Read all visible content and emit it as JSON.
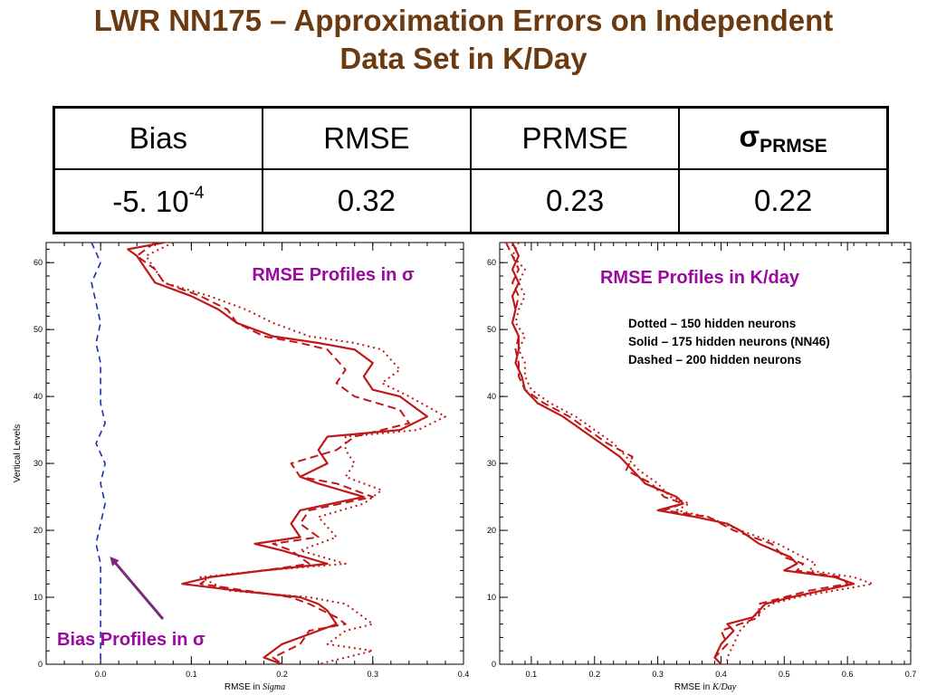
{
  "title": {
    "line1": "LWR NN175 – Approximation Errors on Independent",
    "line2": "Data Set in K/Day"
  },
  "table": {
    "headers": [
      "Bias",
      "RMSE",
      "PRMSE",
      "σ",
      "PRMSE"
    ],
    "values": {
      "bias_mantissa": "-5. 10",
      "bias_exponent": "-4",
      "rmse": "0.32",
      "prmse": "0.23",
      "sigma_prmse": "0.22"
    }
  },
  "annotations": {
    "left_title": "RMSE Profiles in σ",
    "right_title": "RMSE Profiles in K/day",
    "bias_label": "Bias Profiles in σ",
    "legend": [
      "Dotted – 150 hidden neurons",
      "Solid – 175 hidden neurons (NN46)",
      "Dashed – 200 hidden neurons"
    ]
  },
  "colors": {
    "title": "#6b3a10",
    "annotation": "#9b0aa0",
    "profile": "#c01818",
    "bias": "#1a2fb0",
    "arrow": "#7a2a7a"
  },
  "chart_data": [
    {
      "type": "line",
      "xlabel_prefix": "RMSE in",
      "xlabel_unit": "Sigma",
      "ylabel": "Vertical Levels",
      "xlim": [
        -0.06,
        0.4
      ],
      "ylim": [
        0,
        63
      ],
      "xticks": [
        "0.0",
        "0.1",
        "0.2",
        "0.3",
        "0.4"
      ],
      "xtick_values": [
        0.0,
        0.1,
        0.2,
        0.3,
        0.4
      ],
      "yticks": [
        "0",
        "10",
        "20",
        "30",
        "40",
        "50",
        "60"
      ],
      "ytick_values": [
        0,
        10,
        20,
        30,
        40,
        50,
        60
      ],
      "series": [
        {
          "style": "solid",
          "points": [
            [
              0.07,
              63
            ],
            [
              0.03,
              62
            ],
            [
              0.04,
              61
            ],
            [
              0.05,
              59
            ],
            [
              0.06,
              57
            ],
            [
              0.1,
              55
            ],
            [
              0.13,
              53
            ],
            [
              0.15,
              51
            ],
            [
              0.19,
              49
            ],
            [
              0.24,
              48
            ],
            [
              0.28,
              47
            ],
            [
              0.3,
              45
            ],
            [
              0.29,
              43
            ],
            [
              0.3,
              41
            ],
            [
              0.33,
              40
            ],
            [
              0.36,
              37
            ],
            [
              0.33,
              35
            ],
            [
              0.25,
              34
            ],
            [
              0.24,
              32
            ],
            [
              0.25,
              30
            ],
            [
              0.22,
              28
            ],
            [
              0.24,
              27
            ],
            [
              0.29,
              25
            ],
            [
              0.22,
              23
            ],
            [
              0.21,
              21
            ],
            [
              0.22,
              19
            ],
            [
              0.17,
              18
            ],
            [
              0.2,
              17
            ],
            [
              0.25,
              15
            ],
            [
              0.18,
              14
            ],
            [
              0.12,
              13
            ],
            [
              0.09,
              12
            ],
            [
              0.15,
              11
            ],
            [
              0.22,
              10
            ],
            [
              0.24,
              9
            ],
            [
              0.25,
              8
            ],
            [
              0.26,
              6
            ],
            [
              0.24,
              5
            ],
            [
              0.2,
              3
            ],
            [
              0.18,
              1
            ],
            [
              0.2,
              0
            ]
          ]
        },
        {
          "style": "dashed",
          "points": [
            [
              0.06,
              63
            ],
            [
              0.04,
              61
            ],
            [
              0.06,
              59
            ],
            [
              0.07,
              57
            ],
            [
              0.11,
              55
            ],
            [
              0.14,
              53
            ],
            [
              0.15,
              51
            ],
            [
              0.18,
              49
            ],
            [
              0.22,
              48
            ],
            [
              0.25,
              47
            ],
            [
              0.27,
              44
            ],
            [
              0.26,
              42
            ],
            [
              0.28,
              40
            ],
            [
              0.33,
              38
            ],
            [
              0.34,
              36
            ],
            [
              0.28,
              34
            ],
            [
              0.26,
              32
            ],
            [
              0.21,
              30
            ],
            [
              0.22,
              28
            ],
            [
              0.26,
              27
            ],
            [
              0.3,
              25
            ],
            [
              0.23,
              23
            ],
            [
              0.22,
              21
            ],
            [
              0.24,
              19
            ],
            [
              0.19,
              18
            ],
            [
              0.21,
              17
            ],
            [
              0.23,
              15
            ],
            [
              0.18,
              14
            ],
            [
              0.12,
              13
            ],
            [
              0.11,
              12
            ],
            [
              0.16,
              11
            ],
            [
              0.21,
              10
            ],
            [
              0.23,
              9
            ],
            [
              0.26,
              7
            ],
            [
              0.27,
              6
            ],
            [
              0.23,
              5
            ],
            [
              0.22,
              3
            ],
            [
              0.19,
              1
            ],
            [
              0.2,
              0
            ]
          ]
        },
        {
          "style": "dotted",
          "points": [
            [
              0.08,
              63
            ],
            [
              0.05,
              61
            ],
            [
              0.06,
              59
            ],
            [
              0.07,
              57
            ],
            [
              0.12,
              55
            ],
            [
              0.16,
              53
            ],
            [
              0.19,
              51
            ],
            [
              0.23,
              49
            ],
            [
              0.28,
              48
            ],
            [
              0.31,
              47
            ],
            [
              0.33,
              44
            ],
            [
              0.31,
              42
            ],
            [
              0.34,
              40
            ],
            [
              0.38,
              37
            ],
            [
              0.35,
              35
            ],
            [
              0.27,
              34
            ],
            [
              0.27,
              32
            ],
            [
              0.28,
              30
            ],
            [
              0.27,
              28
            ],
            [
              0.31,
              26
            ],
            [
              0.29,
              24
            ],
            [
              0.24,
              22
            ],
            [
              0.26,
              19
            ],
            [
              0.22,
              17
            ],
            [
              0.27,
              15
            ],
            [
              0.18,
              14
            ],
            [
              0.11,
              13
            ],
            [
              0.14,
              11
            ],
            [
              0.23,
              10
            ],
            [
              0.27,
              9
            ],
            [
              0.29,
              7
            ],
            [
              0.3,
              6
            ],
            [
              0.27,
              5
            ],
            [
              0.25,
              3
            ],
            [
              0.3,
              2
            ],
            [
              0.27,
              1
            ],
            [
              0.24,
              0
            ]
          ]
        },
        {
          "style": "bias",
          "points": [
            [
              -0.01,
              63
            ],
            [
              0.0,
              60
            ],
            [
              -0.01,
              57
            ],
            [
              -0.005,
              54
            ],
            [
              0.0,
              51
            ],
            [
              -0.005,
              48
            ],
            [
              0.0,
              45
            ],
            [
              0.0,
              42
            ],
            [
              0.0,
              39
            ],
            [
              0.005,
              36
            ],
            [
              -0.005,
              33
            ],
            [
              0.005,
              30
            ],
            [
              0.0,
              27
            ],
            [
              0.005,
              24
            ],
            [
              0.0,
              21
            ],
            [
              -0.005,
              18
            ],
            [
              0.0,
              15
            ],
            [
              0.0,
              12
            ],
            [
              0.0,
              9
            ],
            [
              0.0,
              6
            ],
            [
              0.0,
              3
            ],
            [
              0.0,
              0
            ]
          ]
        }
      ]
    },
    {
      "type": "line",
      "xlabel_prefix": "RMSE in",
      "xlabel_unit": "K/Day",
      "ylabel": "",
      "xlim": [
        0.05,
        0.7
      ],
      "ylim": [
        0,
        63
      ],
      "xticks": [
        "0.1",
        "0.2",
        "0.3",
        "0.4",
        "0.5",
        "0.6",
        "0.7"
      ],
      "xtick_values": [
        0.1,
        0.2,
        0.3,
        0.4,
        0.5,
        0.6,
        0.7
      ],
      "yticks": [
        "0",
        "10",
        "20",
        "30",
        "40",
        "50",
        "60"
      ],
      "ytick_values": [
        0,
        10,
        20,
        30,
        40,
        50,
        60
      ],
      "series": [
        {
          "style": "solid",
          "points": [
            [
              0.07,
              63
            ],
            [
              0.08,
              61
            ],
            [
              0.07,
              59
            ],
            [
              0.08,
              57
            ],
            [
              0.07,
              55
            ],
            [
              0.075,
              53
            ],
            [
              0.07,
              51
            ],
            [
              0.08,
              49
            ],
            [
              0.08,
              47
            ],
            [
              0.075,
              45
            ],
            [
              0.085,
              43
            ],
            [
              0.09,
              41
            ],
            [
              0.11,
              39
            ],
            [
              0.15,
              37
            ],
            [
              0.18,
              35
            ],
            [
              0.21,
              33
            ],
            [
              0.24,
              31
            ],
            [
              0.26,
              29
            ],
            [
              0.28,
              27
            ],
            [
              0.33,
              25
            ],
            [
              0.34,
              24
            ],
            [
              0.3,
              23
            ],
            [
              0.36,
              22
            ],
            [
              0.41,
              21
            ],
            [
              0.43,
              20
            ],
            [
              0.46,
              18
            ],
            [
              0.51,
              16
            ],
            [
              0.52,
              15
            ],
            [
              0.5,
              14
            ],
            [
              0.58,
              13
            ],
            [
              0.61,
              12
            ],
            [
              0.56,
              11
            ],
            [
              0.51,
              10
            ],
            [
              0.47,
              9
            ],
            [
              0.45,
              7
            ],
            [
              0.41,
              6
            ],
            [
              0.42,
              5
            ],
            [
              0.4,
              3
            ],
            [
              0.39,
              1
            ],
            [
              0.4,
              0
            ]
          ]
        },
        {
          "style": "dashed",
          "points": [
            [
              0.06,
              63
            ],
            [
              0.07,
              61
            ],
            [
              0.08,
              59
            ],
            [
              0.07,
              57
            ],
            [
              0.08,
              55
            ],
            [
              0.075,
              53
            ],
            [
              0.07,
              51
            ],
            [
              0.08,
              49
            ],
            [
              0.075,
              47
            ],
            [
              0.08,
              45
            ],
            [
              0.08,
              43
            ],
            [
              0.09,
              41
            ],
            [
              0.12,
              39
            ],
            [
              0.16,
              37
            ],
            [
              0.19,
              35
            ],
            [
              0.22,
              33
            ],
            [
              0.26,
              31
            ],
            [
              0.25,
              29
            ],
            [
              0.29,
              27
            ],
            [
              0.31,
              25
            ],
            [
              0.34,
              24
            ],
            [
              0.31,
              23
            ],
            [
              0.38,
              22
            ],
            [
              0.42,
              20
            ],
            [
              0.48,
              18
            ],
            [
              0.5,
              16
            ],
            [
              0.53,
              15
            ],
            [
              0.52,
              14
            ],
            [
              0.59,
              13
            ],
            [
              0.6,
              12
            ],
            [
              0.54,
              11
            ],
            [
              0.5,
              10
            ],
            [
              0.46,
              9
            ],
            [
              0.46,
              7
            ],
            [
              0.43,
              6
            ],
            [
              0.4,
              5
            ],
            [
              0.41,
              3
            ],
            [
              0.39,
              1
            ],
            [
              0.4,
              0
            ]
          ]
        },
        {
          "style": "dotted",
          "points": [
            [
              0.08,
              63
            ],
            [
              0.07,
              61
            ],
            [
              0.09,
              59
            ],
            [
              0.08,
              57
            ],
            [
              0.09,
              55
            ],
            [
              0.08,
              53
            ],
            [
              0.075,
              51
            ],
            [
              0.09,
              49
            ],
            [
              0.08,
              47
            ],
            [
              0.09,
              45
            ],
            [
              0.09,
              43
            ],
            [
              0.1,
              41
            ],
            [
              0.13,
              39
            ],
            [
              0.17,
              37
            ],
            [
              0.2,
              35
            ],
            [
              0.23,
              33
            ],
            [
              0.25,
              31
            ],
            [
              0.27,
              29
            ],
            [
              0.3,
              27
            ],
            [
              0.32,
              25
            ],
            [
              0.35,
              24
            ],
            [
              0.33,
              23
            ],
            [
              0.38,
              22
            ],
            [
              0.43,
              20
            ],
            [
              0.49,
              18
            ],
            [
              0.53,
              16
            ],
            [
              0.55,
              15
            ],
            [
              0.54,
              14
            ],
            [
              0.61,
              13
            ],
            [
              0.64,
              12
            ],
            [
              0.58,
              11
            ],
            [
              0.52,
              10
            ],
            [
              0.48,
              9
            ],
            [
              0.45,
              7
            ],
            [
              0.44,
              6
            ],
            [
              0.43,
              5
            ],
            [
              0.42,
              3
            ],
            [
              0.41,
              1
            ],
            [
              0.41,
              0
            ]
          ]
        }
      ]
    }
  ]
}
